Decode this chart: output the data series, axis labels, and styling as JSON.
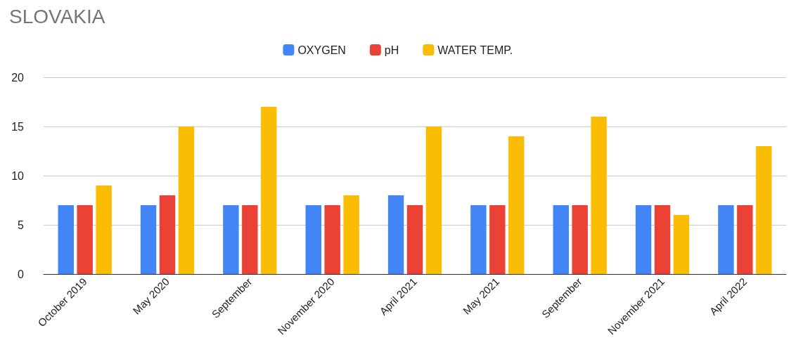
{
  "chart_data": {
    "type": "bar",
    "title": "SLOVAKIA",
    "categories": [
      "October 2019",
      "May 2020",
      "September",
      "November 2020",
      "April 2021",
      "May 2021",
      "September",
      "November 2021",
      "April 2022"
    ],
    "series": [
      {
        "name": "OXYGEN",
        "color": "#4285f4",
        "values": [
          7,
          7,
          7,
          7,
          8,
          7,
          7,
          7,
          7
        ]
      },
      {
        "name": "pH",
        "color": "#ea4335",
        "values": [
          7,
          8,
          7,
          7,
          7,
          7,
          7,
          7,
          7
        ]
      },
      {
        "name": "WATER TEMP.",
        "color": "#fbbc04",
        "values": [
          9,
          15,
          17,
          8,
          15,
          14,
          16,
          6,
          13
        ]
      }
    ],
    "ylim": [
      0,
      20
    ],
    "yticks": [
      0,
      5,
      10,
      15,
      20
    ],
    "grid": "y",
    "legend": "top"
  }
}
